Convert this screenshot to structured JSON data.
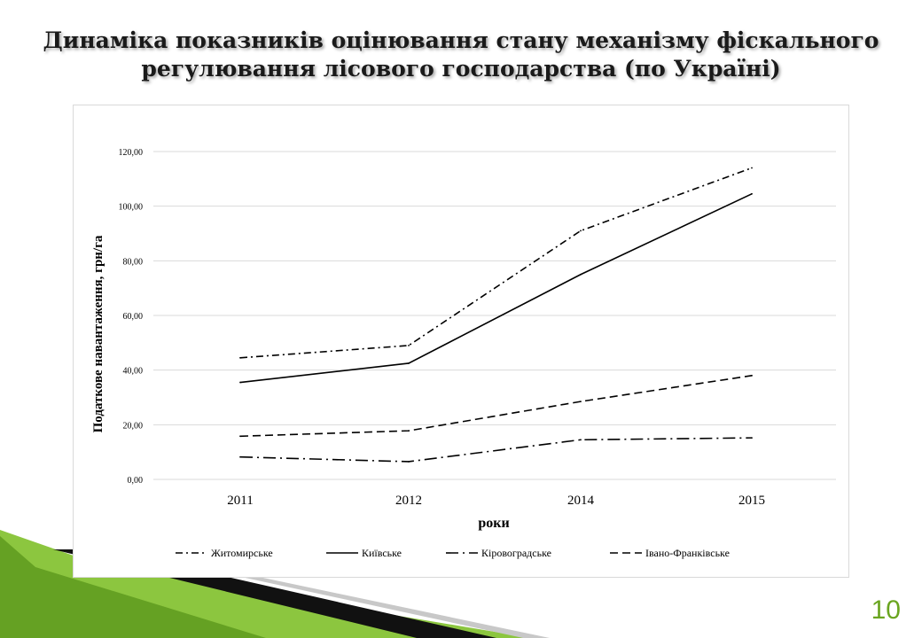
{
  "slide": {
    "title_line1": "Динаміка показників оцінювання стану механізму фіскального",
    "title_line2": "регулювання лісового господарства (по Україні)",
    "page_number": "10"
  },
  "colors": {
    "accent_green": "#6aa520",
    "series_color": "#000000"
  },
  "chart_data": {
    "type": "line",
    "categories": [
      "2011",
      "2012",
      "2014",
      "2015"
    ],
    "ylabel": "Податкове навантаження, грн/га",
    "xlabel": "роки",
    "ylim": [
      0,
      120
    ],
    "yticks": [
      "0,00",
      "20,00",
      "40,00",
      "60,00",
      "80,00",
      "100,00",
      "120,00"
    ],
    "ytick_values": [
      0,
      20,
      40,
      60,
      80,
      100,
      120
    ],
    "grid": true,
    "legend_position": "bottom",
    "series": [
      {
        "name": "Житомирське",
        "values": [
          44.5,
          49.0,
          91.0,
          114.0
        ],
        "dash": "dash-dot"
      },
      {
        "name": "Київське",
        "values": [
          35.5,
          42.5,
          75.0,
          104.5
        ],
        "dash": "solid"
      },
      {
        "name": "Кіровоградське",
        "values": [
          8.2,
          6.5,
          14.5,
          15.2
        ],
        "dash": "long-dash-dot"
      },
      {
        "name": "Івано-Франківське",
        "values": [
          15.8,
          17.8,
          28.5,
          38.0
        ],
        "dash": "dashed"
      }
    ]
  }
}
